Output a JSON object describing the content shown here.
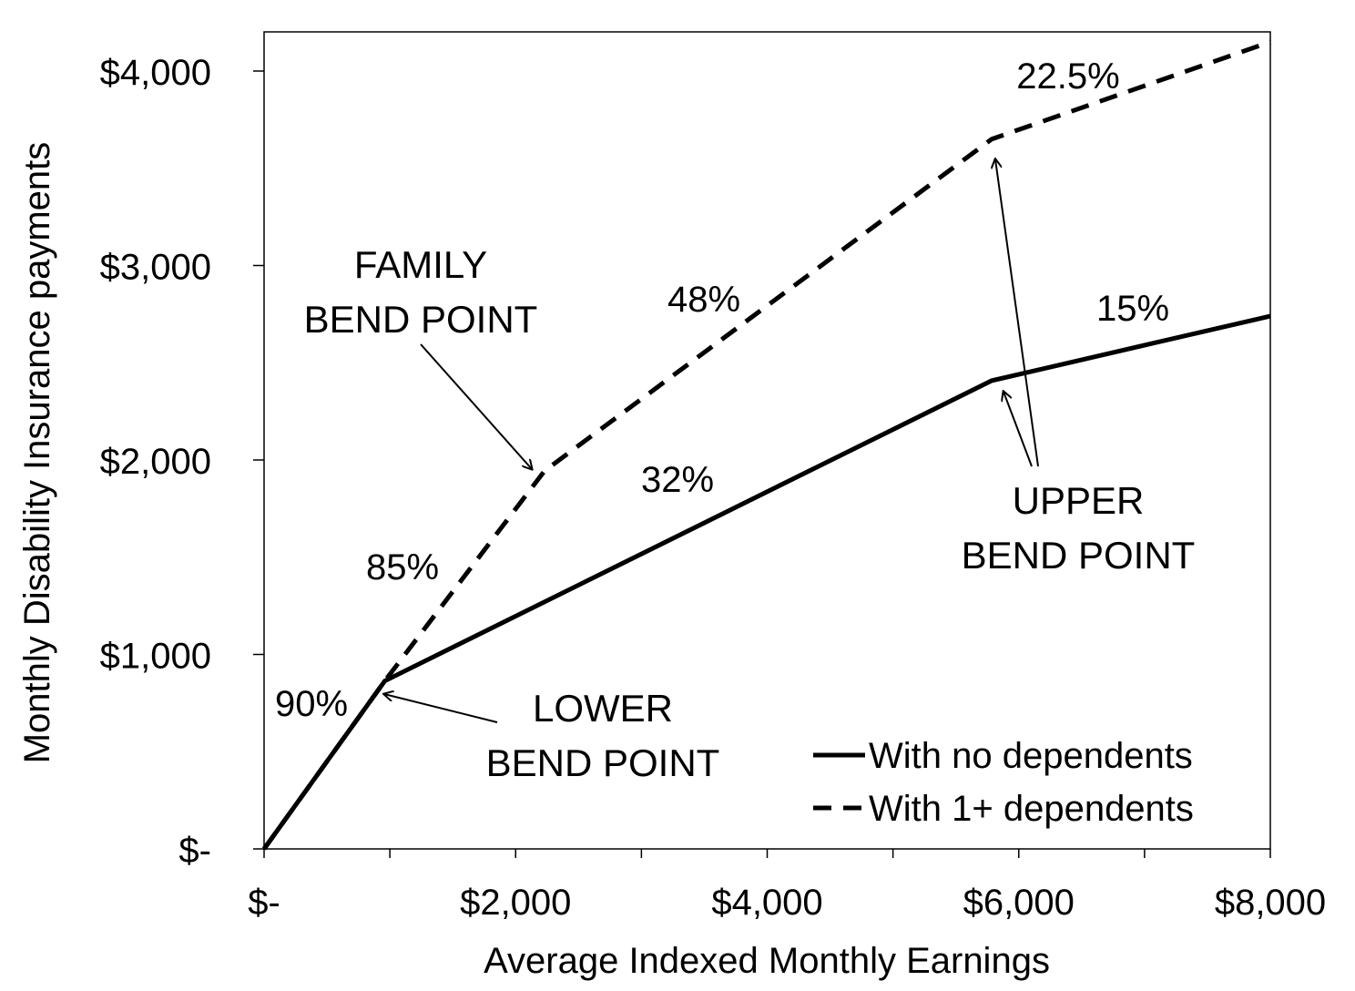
{
  "chart_data": {
    "type": "line",
    "title": "",
    "xlabel": "Average Indexed Monthly Earnings",
    "ylabel": "Monthly Disability Insurance payments",
    "xlim": [
      0,
      8000
    ],
    "ylim": [
      0,
      4200
    ],
    "x_ticks": [
      {
        "value": 0,
        "label": "$-"
      },
      {
        "value": 2000,
        "label": "$2,000"
      },
      {
        "value": 4000,
        "label": "$4,000"
      },
      {
        "value": 6000,
        "label": "$6,000"
      },
      {
        "value": 8000,
        "label": "$8,000"
      }
    ],
    "x_minor_ticks": [
      1000,
      3000,
      5000,
      7000
    ],
    "y_ticks": [
      {
        "value": 0,
        "label": "$-"
      },
      {
        "value": 1000,
        "label": "$1,000"
      },
      {
        "value": 2000,
        "label": "$2,000"
      },
      {
        "value": 3000,
        "label": "$3,000"
      },
      {
        "value": 4000,
        "label": "$4,000"
      }
    ],
    "grid": false,
    "legend_position": "bottom-right",
    "series": [
      {
        "name": "With no dependents",
        "style": "solid",
        "x": [
          0,
          960,
          5785,
          8000
        ],
        "y": [
          0,
          864,
          2408,
          2740
        ]
      },
      {
        "name": "With 1+ dependents",
        "style": "dashed",
        "x": [
          0,
          960,
          2230,
          5785,
          8000
        ],
        "y": [
          0,
          864,
          1944,
          3650,
          4150
        ]
      }
    ],
    "annotations": {
      "labels": [
        {
          "id": "lower",
          "lines": [
            "LOWER",
            "BEND POINT"
          ]
        },
        {
          "id": "family",
          "lines": [
            "FAMILY",
            "BEND POINT"
          ]
        },
        {
          "id": "upper",
          "lines": [
            "UPPER",
            "BEND POINT"
          ]
        }
      ],
      "rates": [
        "90%",
        "85%",
        "32%",
        "48%",
        "15%",
        "22.5%"
      ]
    }
  }
}
